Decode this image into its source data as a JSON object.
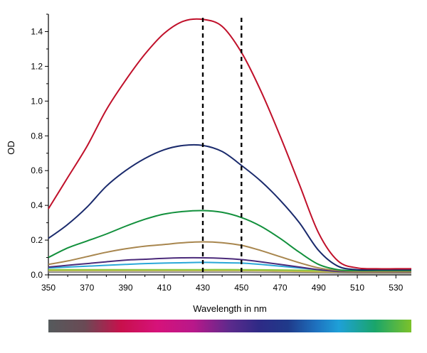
{
  "chart_data": {
    "type": "line",
    "title": "",
    "xlabel": "Wavelength in nm",
    "ylabel": "OD",
    "xlim": [
      350,
      538
    ],
    "ylim": [
      0,
      1.5
    ],
    "xticks": [
      "350",
      "370",
      "390",
      "410",
      "430",
      "450",
      "470",
      "490",
      "510",
      "530"
    ],
    "yticks": [
      "0.0",
      "0.2",
      "0.4",
      "0.6",
      "0.8",
      "1.0",
      "1.2",
      "1.4"
    ],
    "vlines": [
      430,
      450
    ],
    "grid": false,
    "legend": "none",
    "series": [
      {
        "color": "#c0102a",
        "x": [
          350,
          360,
          370,
          380,
          390,
          400,
          410,
          420,
          430,
          440,
          450,
          460,
          470,
          480,
          490,
          500,
          510,
          520,
          530,
          538
        ],
        "y": [
          0.38,
          0.56,
          0.74,
          0.95,
          1.12,
          1.27,
          1.39,
          1.46,
          1.47,
          1.43,
          1.28,
          1.06,
          0.8,
          0.52,
          0.24,
          0.08,
          0.04,
          0.035,
          0.035,
          0.035
        ]
      },
      {
        "color": "#1a2a6c",
        "x": [
          350,
          360,
          370,
          380,
          390,
          400,
          410,
          420,
          430,
          440,
          450,
          460,
          470,
          480,
          490,
          500,
          510,
          520,
          530,
          538
        ],
        "y": [
          0.21,
          0.29,
          0.39,
          0.51,
          0.6,
          0.67,
          0.72,
          0.745,
          0.745,
          0.71,
          0.63,
          0.54,
          0.43,
          0.3,
          0.14,
          0.05,
          0.03,
          0.03,
          0.03,
          0.03
        ]
      },
      {
        "color": "#12903c",
        "x": [
          350,
          360,
          370,
          380,
          390,
          400,
          410,
          420,
          430,
          440,
          450,
          460,
          470,
          480,
          490,
          500,
          510,
          520,
          530,
          538
        ],
        "y": [
          0.1,
          0.155,
          0.195,
          0.235,
          0.28,
          0.32,
          0.35,
          0.365,
          0.37,
          0.36,
          0.33,
          0.28,
          0.21,
          0.13,
          0.06,
          0.03,
          0.025,
          0.025,
          0.025,
          0.025
        ]
      },
      {
        "color": "#a8864e",
        "x": [
          350,
          360,
          370,
          380,
          390,
          400,
          410,
          420,
          430,
          440,
          450,
          460,
          470,
          480,
          490,
          500,
          510,
          520,
          530,
          538
        ],
        "y": [
          0.06,
          0.08,
          0.105,
          0.13,
          0.15,
          0.165,
          0.175,
          0.185,
          0.19,
          0.185,
          0.17,
          0.14,
          0.105,
          0.07,
          0.04,
          0.025,
          0.02,
          0.02,
          0.02,
          0.02
        ]
      },
      {
        "color": "#4b2a7a",
        "x": [
          350,
          360,
          370,
          380,
          390,
          400,
          410,
          420,
          430,
          440,
          450,
          460,
          470,
          480,
          490,
          500,
          510,
          520,
          530,
          538
        ],
        "y": [
          0.045,
          0.055,
          0.065,
          0.075,
          0.085,
          0.09,
          0.095,
          0.098,
          0.098,
          0.095,
          0.088,
          0.075,
          0.06,
          0.045,
          0.03,
          0.02,
          0.018,
          0.018,
          0.018,
          0.018
        ]
      },
      {
        "color": "#2aa8d8",
        "x": [
          350,
          360,
          370,
          380,
          390,
          400,
          410,
          420,
          430,
          440,
          450,
          460,
          470,
          480,
          490,
          500,
          510,
          520,
          530,
          538
        ],
        "y": [
          0.04,
          0.045,
          0.05,
          0.055,
          0.06,
          0.065,
          0.068,
          0.07,
          0.072,
          0.07,
          0.068,
          0.06,
          0.05,
          0.04,
          0.03,
          0.02,
          0.02,
          0.02,
          0.02,
          0.02
        ]
      },
      {
        "color": "#8cc63f",
        "x": [
          350,
          370,
          390,
          410,
          430,
          450,
          470,
          490,
          510,
          530,
          538
        ],
        "y": [
          0.03,
          0.03,
          0.03,
          0.03,
          0.03,
          0.03,
          0.028,
          0.025,
          0.02,
          0.02,
          0.02
        ]
      },
      {
        "color": "#c8b44a",
        "x": [
          350,
          370,
          390,
          410,
          430,
          450,
          470,
          490,
          510,
          530,
          538
        ],
        "y": [
          0.025,
          0.025,
          0.025,
          0.025,
          0.025,
          0.025,
          0.022,
          0.018,
          0.015,
          0.015,
          0.015
        ]
      },
      {
        "color": "#8a8a8a",
        "x": [
          350,
          370,
          390,
          410,
          430,
          450,
          470,
          490,
          510,
          530,
          538
        ],
        "y": [
          0.015,
          0.015,
          0.015,
          0.015,
          0.015,
          0.015,
          0.014,
          0.012,
          0.01,
          0.01,
          0.01
        ]
      }
    ]
  }
}
